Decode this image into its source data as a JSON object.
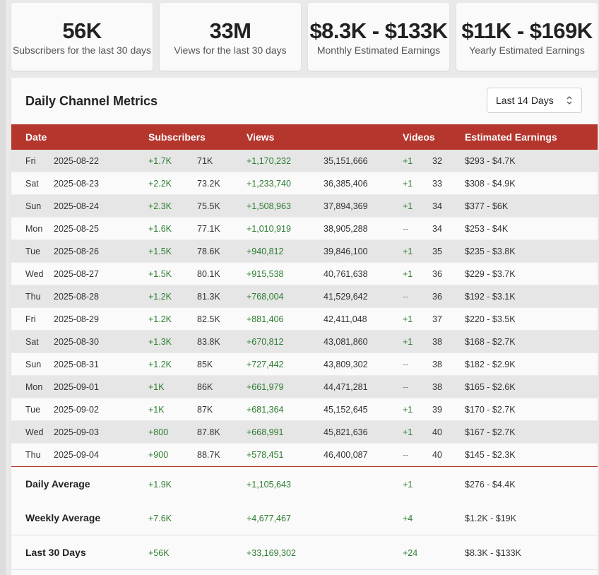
{
  "stats": [
    {
      "value": "56K",
      "label": "Subscribers for the last 30 days"
    },
    {
      "value": "33M",
      "label": "Views for the last 30 days"
    },
    {
      "value": "$8.3K - $133K",
      "label": "Monthly Estimated Earnings"
    },
    {
      "value": "$11K - $169K",
      "label": "Yearly Estimated Earnings"
    }
  ],
  "panel": {
    "title": "Daily Channel Metrics",
    "range_select": "Last 14 Days"
  },
  "table": {
    "headers": {
      "date": "Date",
      "subscribers": "Subscribers",
      "views": "Views",
      "videos": "Videos",
      "earnings": "Estimated Earnings"
    },
    "rows": [
      {
        "day": "Fri",
        "date": "2025-08-22",
        "sub_delta": "+1.7K",
        "sub_total": "71K",
        "view_delta": "+1,170,232",
        "view_total": "35,151,666",
        "vid_delta": "+1",
        "vid_total": "32",
        "earnings": "$293 - $4.7K"
      },
      {
        "day": "Sat",
        "date": "2025-08-23",
        "sub_delta": "+2.2K",
        "sub_total": "73.2K",
        "view_delta": "+1,233,740",
        "view_total": "36,385,406",
        "vid_delta": "+1",
        "vid_total": "33",
        "earnings": "$308 - $4.9K"
      },
      {
        "day": "Sun",
        "date": "2025-08-24",
        "sub_delta": "+2.3K",
        "sub_total": "75.5K",
        "view_delta": "+1,508,963",
        "view_total": "37,894,369",
        "vid_delta": "+1",
        "vid_total": "34",
        "earnings": "$377 - $6K"
      },
      {
        "day": "Mon",
        "date": "2025-08-25",
        "sub_delta": "+1.6K",
        "sub_total": "77.1K",
        "view_delta": "+1,010,919",
        "view_total": "38,905,288",
        "vid_delta": "--",
        "vid_total": "34",
        "earnings": "$253 - $4K"
      },
      {
        "day": "Tue",
        "date": "2025-08-26",
        "sub_delta": "+1.5K",
        "sub_total": "78.6K",
        "view_delta": "+940,812",
        "view_total": "39,846,100",
        "vid_delta": "+1",
        "vid_total": "35",
        "earnings": "$235 - $3.8K"
      },
      {
        "day": "Wed",
        "date": "2025-08-27",
        "sub_delta": "+1.5K",
        "sub_total": "80.1K",
        "view_delta": "+915,538",
        "view_total": "40,761,638",
        "vid_delta": "+1",
        "vid_total": "36",
        "earnings": "$229 - $3.7K"
      },
      {
        "day": "Thu",
        "date": "2025-08-28",
        "sub_delta": "+1.2K",
        "sub_total": "81.3K",
        "view_delta": "+768,004",
        "view_total": "41,529,642",
        "vid_delta": "--",
        "vid_total": "36",
        "earnings": "$192 - $3.1K"
      },
      {
        "day": "Fri",
        "date": "2025-08-29",
        "sub_delta": "+1.2K",
        "sub_total": "82.5K",
        "view_delta": "+881,406",
        "view_total": "42,411,048",
        "vid_delta": "+1",
        "vid_total": "37",
        "earnings": "$220 - $3.5K"
      },
      {
        "day": "Sat",
        "date": "2025-08-30",
        "sub_delta": "+1.3K",
        "sub_total": "83.8K",
        "view_delta": "+670,812",
        "view_total": "43,081,860",
        "vid_delta": "+1",
        "vid_total": "38",
        "earnings": "$168 - $2.7K"
      },
      {
        "day": "Sun",
        "date": "2025-08-31",
        "sub_delta": "+1.2K",
        "sub_total": "85K",
        "view_delta": "+727,442",
        "view_total": "43,809,302",
        "vid_delta": "--",
        "vid_total": "38",
        "earnings": "$182 - $2.9K"
      },
      {
        "day": "Mon",
        "date": "2025-09-01",
        "sub_delta": "+1K",
        "sub_total": "86K",
        "view_delta": "+661,979",
        "view_total": "44,471,281",
        "vid_delta": "--",
        "vid_total": "38",
        "earnings": "$165 - $2.6K"
      },
      {
        "day": "Tue",
        "date": "2025-09-02",
        "sub_delta": "+1K",
        "sub_total": "87K",
        "view_delta": "+681,364",
        "view_total": "45,152,645",
        "vid_delta": "+1",
        "vid_total": "39",
        "earnings": "$170 - $2.7K"
      },
      {
        "day": "Wed",
        "date": "2025-09-03",
        "sub_delta": "+800",
        "sub_total": "87.8K",
        "view_delta": "+668,991",
        "view_total": "45,821,636",
        "vid_delta": "+1",
        "vid_total": "40",
        "earnings": "$167 - $2.7K"
      },
      {
        "day": "Thu",
        "date": "2025-09-04",
        "sub_delta": "+900",
        "sub_total": "88.7K",
        "view_delta": "+578,451",
        "view_total": "46,400,087",
        "vid_delta": "--",
        "vid_total": "40",
        "earnings": "$145 - $2.3K"
      }
    ],
    "summary": [
      {
        "label": "Daily Average",
        "sub": "+1.9K",
        "views": "+1,105,643",
        "videos": "+1",
        "earnings": "$276 - $4.4K"
      },
      {
        "label": "Weekly Average",
        "sub": "+7.6K",
        "views": "+4,677,467",
        "videos": "+4",
        "earnings": "$1.2K - $19K"
      },
      {
        "label": "Last 30 Days",
        "sub": "+56K",
        "views": "+33,169,302",
        "videos": "+24",
        "earnings": "$8.3K - $133K"
      }
    ]
  },
  "colors": {
    "header": "#b5362d",
    "positive": "#2e7d32"
  }
}
